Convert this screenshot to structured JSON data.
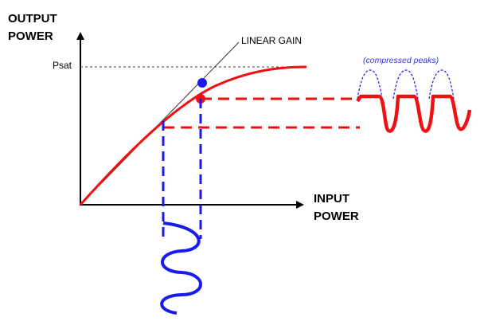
{
  "diagram": {
    "y_axis_label_line1": "OUTPUT",
    "y_axis_label_line2": "POWER",
    "x_axis_label_line1": "INPUT",
    "x_axis_label_line2": "POWER",
    "psat_label": "Psat",
    "linear_gain_label": "LINEAR GAIN",
    "compressed_peaks_label": "(compressed peaks)"
  },
  "colors": {
    "curve": "#ee1111",
    "input_signal": "#1a1aee",
    "axes": "#000000",
    "linear_gain_line": "#333333",
    "psat_dash": "#444444"
  }
}
